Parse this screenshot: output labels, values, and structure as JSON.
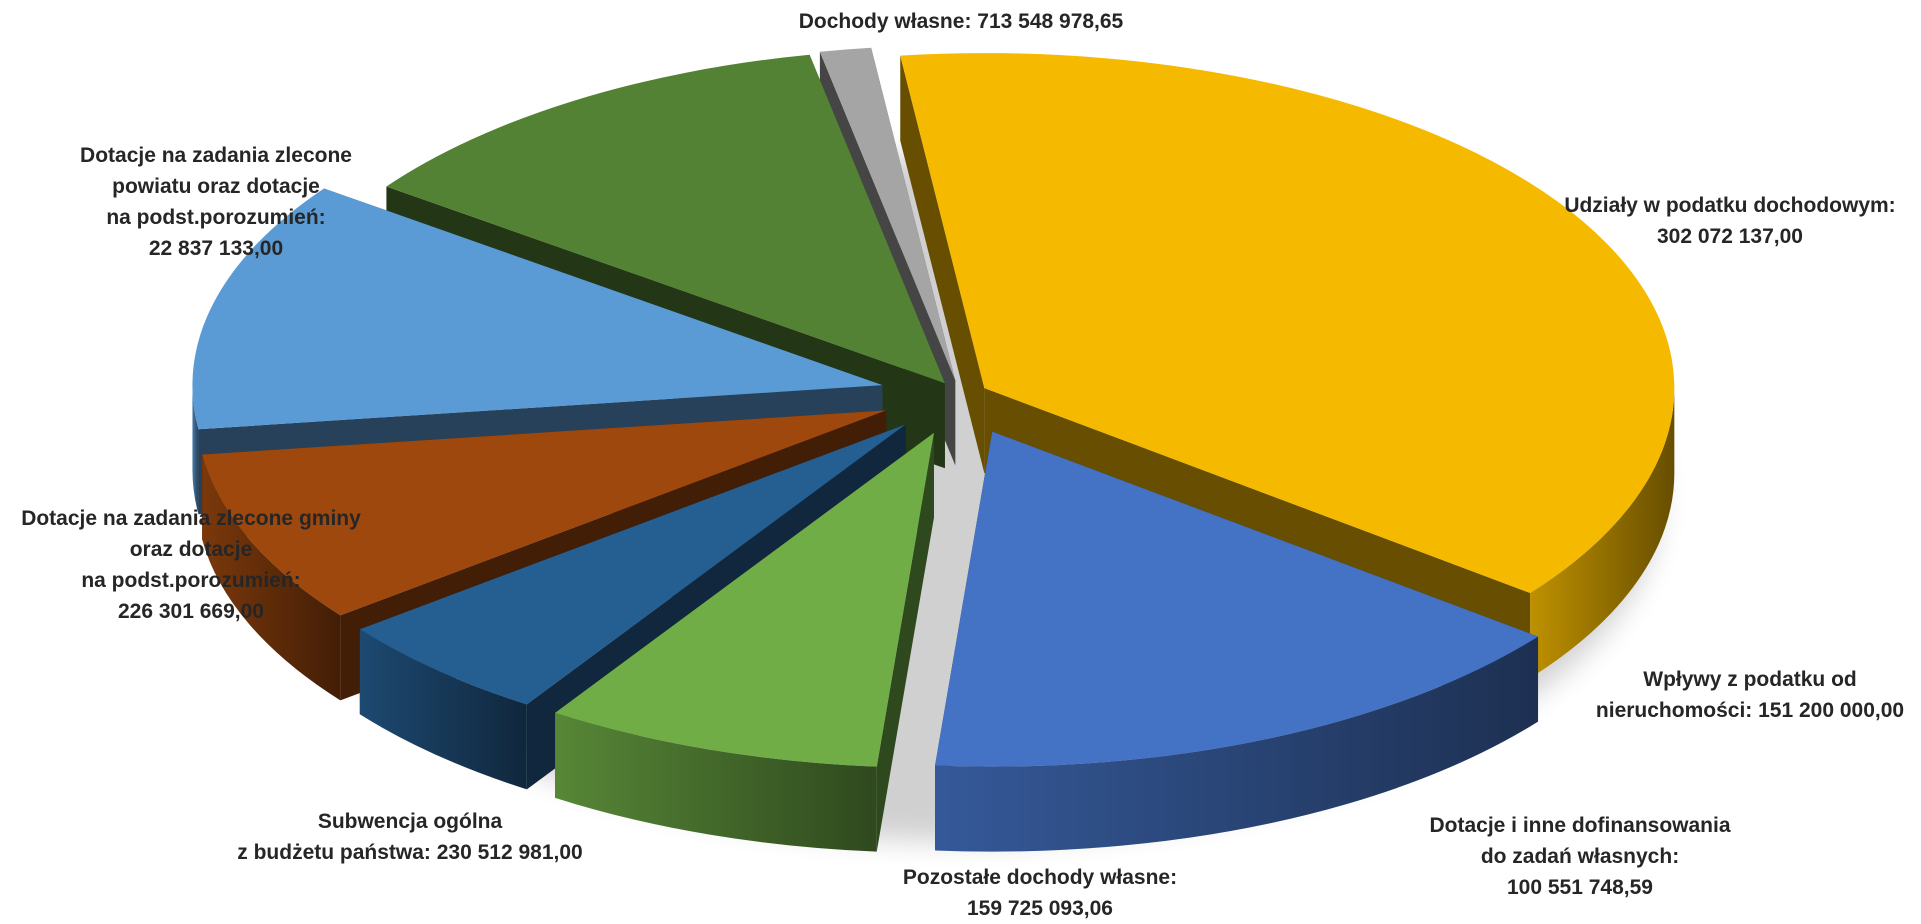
{
  "chart_data": {
    "type": "pie",
    "style": "3d-exploded",
    "slices": [
      {
        "key": "dochody",
        "lines": [
          "Dochody własne: 713 548 978,65"
        ],
        "value": 713548978.65,
        "color": "#F5BA00"
      },
      {
        "key": "udzialy",
        "lines": [
          "Udziały w podatku dochodowym:",
          "302 072 137,00"
        ],
        "value": 302072137.0,
        "color": "#4472C4"
      },
      {
        "key": "wplywy",
        "lines": [
          "Wpływy z podatku od",
          "nieruchomości: 151 200 000,00"
        ],
        "value": 151200000.0,
        "color": "#70AD47"
      },
      {
        "key": "dotacje_wlasne",
        "lines": [
          "Dotacje i inne dofinansowania",
          "do zadań własnych:",
          "100 551 748,59"
        ],
        "value": 100551748.59,
        "color": "#255E91"
      },
      {
        "key": "pozostale",
        "lines": [
          "Pozostałe dochody własne:",
          "159 725 093,06"
        ],
        "value": 159725093.06,
        "color": "#9E480E"
      },
      {
        "key": "subwencja",
        "lines": [
          "Subwencja ogólna",
          "z budżetu państwa: 230 512 981,00"
        ],
        "value": 230512981.0,
        "color": "#5B9BD5"
      },
      {
        "key": "gmina",
        "lines": [
          "Dotacje na zadania zlecone gminy",
          "oraz dotacje",
          "na podst.porozumień:",
          "226 301 669,00"
        ],
        "value": 226301669.0,
        "color": "#548235"
      },
      {
        "key": "powiat",
        "lines": [
          "Dotacje na zadania zlecone",
          "powiatu oraz dotacje",
          "na podst.porozumień:",
          "22 837 133,00"
        ],
        "value": 22837133.0,
        "color": "#A5A5A5"
      }
    ]
  }
}
